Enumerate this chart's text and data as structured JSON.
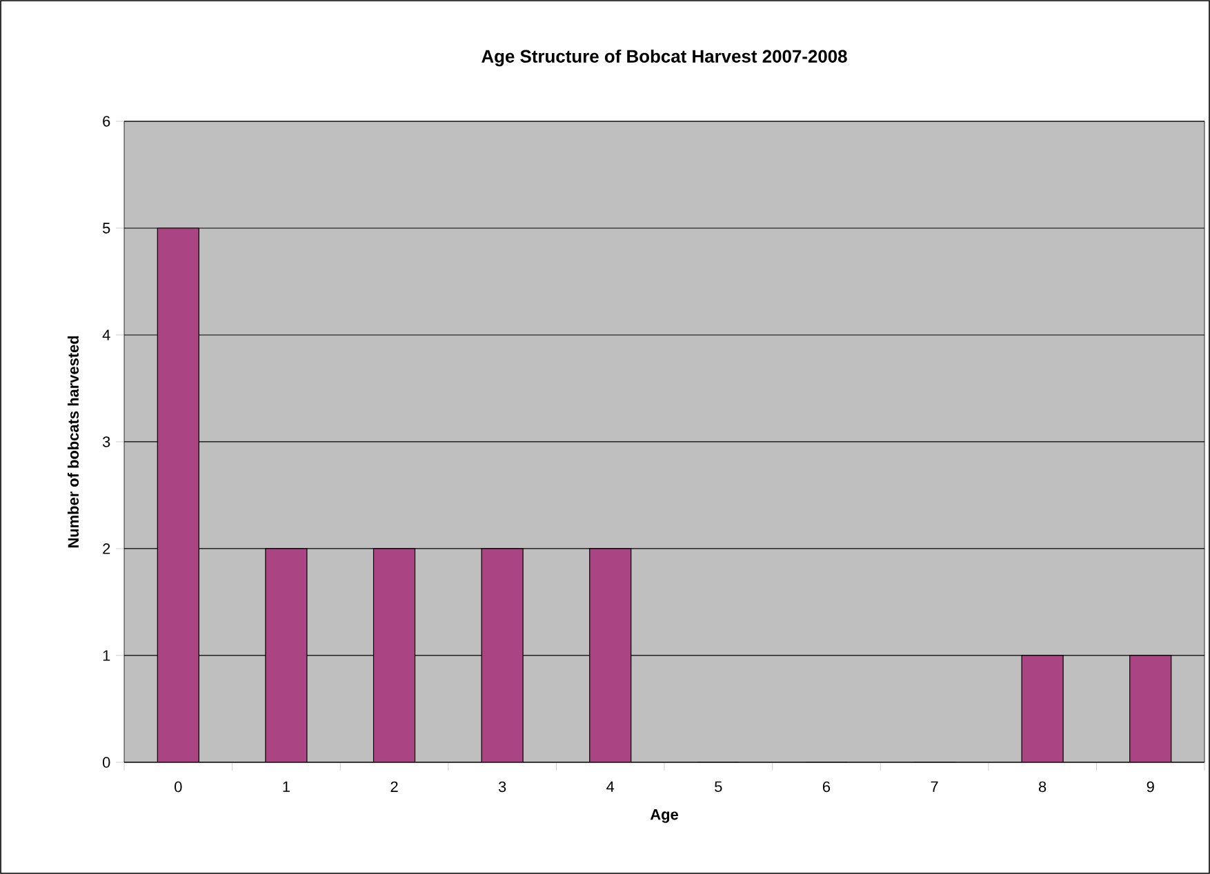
{
  "chart_data": {
    "type": "bar",
    "title": "Age Structure of Bobcat Harvest 2007-2008",
    "xlabel": "Age",
    "ylabel": "Number of bobcats harvested",
    "categories": [
      "0",
      "1",
      "2",
      "3",
      "4",
      "5",
      "6",
      "7",
      "8",
      "9"
    ],
    "values": [
      5,
      2,
      2,
      2,
      2,
      0,
      0,
      0,
      1,
      1
    ],
    "color": "#aa4482",
    "ylim": [
      0,
      6
    ],
    "yticks": [
      0,
      1,
      2,
      3,
      4,
      5,
      6
    ],
    "grid": "y"
  }
}
